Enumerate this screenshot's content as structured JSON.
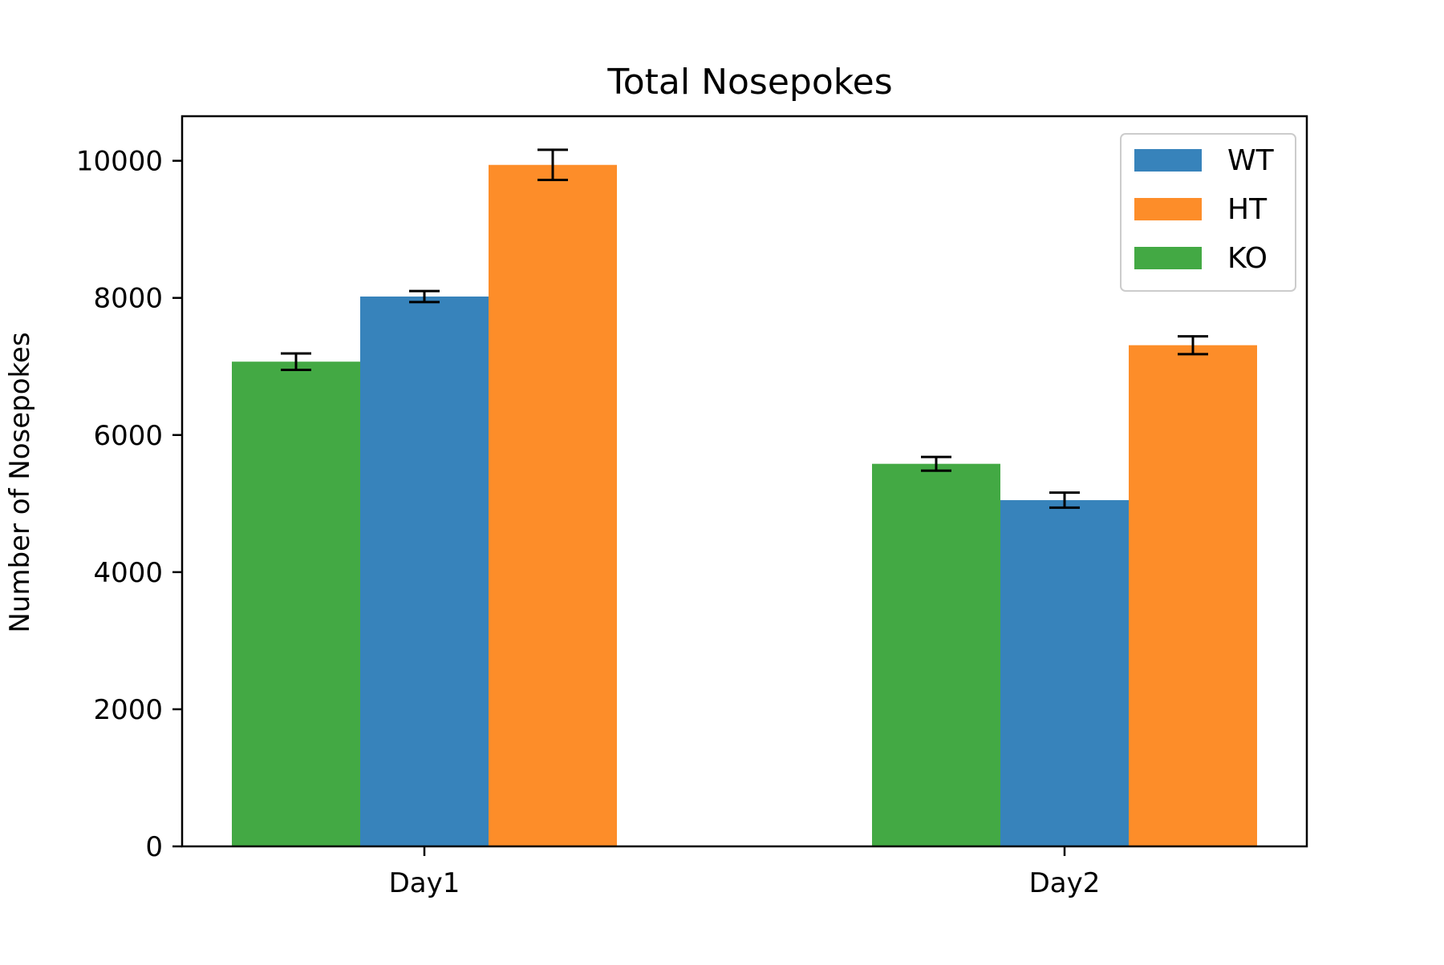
{
  "chart_data": {
    "type": "bar",
    "title": "Total Nosepokes",
    "xlabel": "",
    "ylabel": "Number of Nosepokes",
    "categories": [
      "Day1",
      "Day2"
    ],
    "ylim": [
      0,
      10650
    ],
    "yticks": [
      0,
      2000,
      4000,
      6000,
      8000,
      10000
    ],
    "grid": false,
    "legend_position": "top-right",
    "legend_order": [
      "WT",
      "HT",
      "KO"
    ],
    "draw_order": [
      "KO",
      "WT",
      "HT"
    ],
    "series": [
      {
        "name": "WT",
        "color": "#3783bb",
        "values": [
          8020,
          5050
        ],
        "errors": [
          80,
          110
        ]
      },
      {
        "name": "HT",
        "color": "#fd8d29",
        "values": [
          9940,
          7310
        ],
        "errors": [
          220,
          130
        ]
      },
      {
        "name": "KO",
        "color": "#43a944",
        "values": [
          7070,
          5580
        ],
        "errors": [
          120,
          100
        ]
      }
    ]
  }
}
